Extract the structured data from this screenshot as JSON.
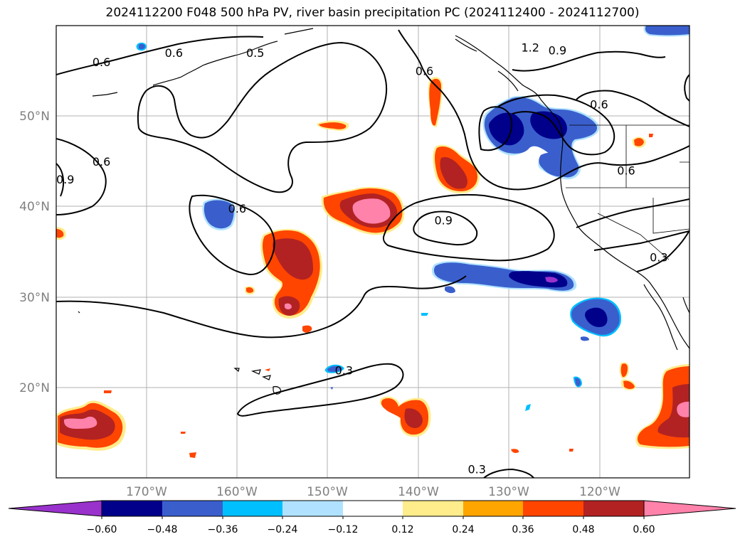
{
  "title": "2024112200 F048 500 hPa PV, river basin precipitation PC (2024112400 - 2024112700)",
  "map": {
    "projection": "PlateCarree",
    "lon_range": [
      -180,
      -110
    ],
    "lat_range": [
      10,
      60
    ],
    "gridlines": true,
    "x_ticks": [
      "170°W",
      "160°W",
      "150°W",
      "140°W",
      "130°W",
      "120°W"
    ],
    "y_ticks": [
      "20°N",
      "30°N",
      "40°N",
      "50°N"
    ],
    "pv_contour_labels": [
      {
        "text": "0.6",
        "lon": -175,
        "lat": 56
      },
      {
        "text": "0.6",
        "lon": -167,
        "lat": 57
      },
      {
        "text": "0.5",
        "lon": -158,
        "lat": 57
      },
      {
        "text": "0.6",
        "lon": -175,
        "lat": 45
      },
      {
        "text": "0.9",
        "lon": -179,
        "lat": 43
      },
      {
        "text": "0.6",
        "lon": -160,
        "lat": 39.8
      },
      {
        "text": "0.9",
        "lon": -137.2,
        "lat": 38.5
      },
      {
        "text": "0.6",
        "lon": -139.3,
        "lat": 55
      },
      {
        "text": "1.2",
        "lon": -127.6,
        "lat": 57.6
      },
      {
        "text": "0.9",
        "lon": -124.6,
        "lat": 57.3
      },
      {
        "text": "0.6",
        "lon": -120,
        "lat": 51.3
      },
      {
        "text": "0.6",
        "lon": -117,
        "lat": 44
      },
      {
        "text": "0.3",
        "lon": -113.4,
        "lat": 34.4
      },
      {
        "text": "0.3",
        "lon": -148.2,
        "lat": 21.9
      },
      {
        "text": "0.3",
        "lon": -133.5,
        "lat": 11
      }
    ]
  },
  "colorbar": {
    "ticks": [
      "−0.60",
      "−0.48",
      "−0.36",
      "−0.24",
      "−0.12",
      "0.12",
      "0.24",
      "0.36",
      "0.48",
      "0.60"
    ],
    "colors": [
      "#9932cc",
      "#00008b",
      "#3a5fcd",
      "#00bfff",
      "#b0e2ff",
      "#ffffff",
      "#ffec8b",
      "#ffa500",
      "#ff4500",
      "#b22222",
      "#ff82ab"
    ]
  }
}
